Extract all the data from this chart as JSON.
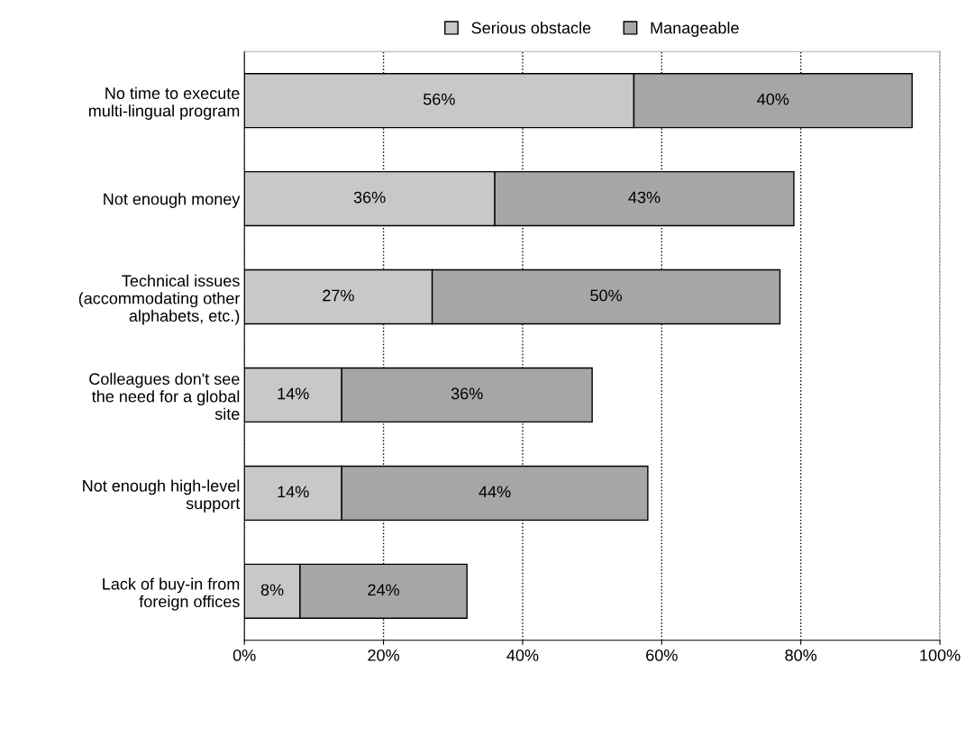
{
  "chart_data": {
    "type": "bar",
    "orientation": "horizontal",
    "stacked": true,
    "categories": [
      "No time to execute\nmulti-lingual program",
      "Not enough money",
      "Technical issues\n(accommodating other\nalphabets, etc.)",
      "Colleagues don't see\nthe need for a global\nsite",
      "Not enough high-level\nsupport",
      "Lack of buy-in from\nforeign offices"
    ],
    "series": [
      {
        "name": "Serious obstacle",
        "color": "#c8c8c8",
        "values": [
          56,
          36,
          27,
          14,
          14,
          8
        ],
        "value_labels": [
          "56%",
          "36%",
          "27%",
          "14%",
          "14%",
          "8%"
        ]
      },
      {
        "name": "Manageable",
        "color": "#a6a6a6",
        "values": [
          40,
          43,
          50,
          36,
          44,
          24
        ],
        "value_labels": [
          "40%",
          "43%",
          "50%",
          "36%",
          "44%",
          "24%"
        ]
      }
    ],
    "xlim": [
      0,
      100
    ],
    "xticks": [
      {
        "value": 0,
        "label": "0%"
      },
      {
        "value": 20,
        "label": "20%"
      },
      {
        "value": 40,
        "label": "40%"
      },
      {
        "value": 60,
        "label": "60%"
      },
      {
        "value": 80,
        "label": "80%"
      },
      {
        "value": 100,
        "label": "100%"
      }
    ],
    "grid": "x",
    "legend": "top"
  }
}
